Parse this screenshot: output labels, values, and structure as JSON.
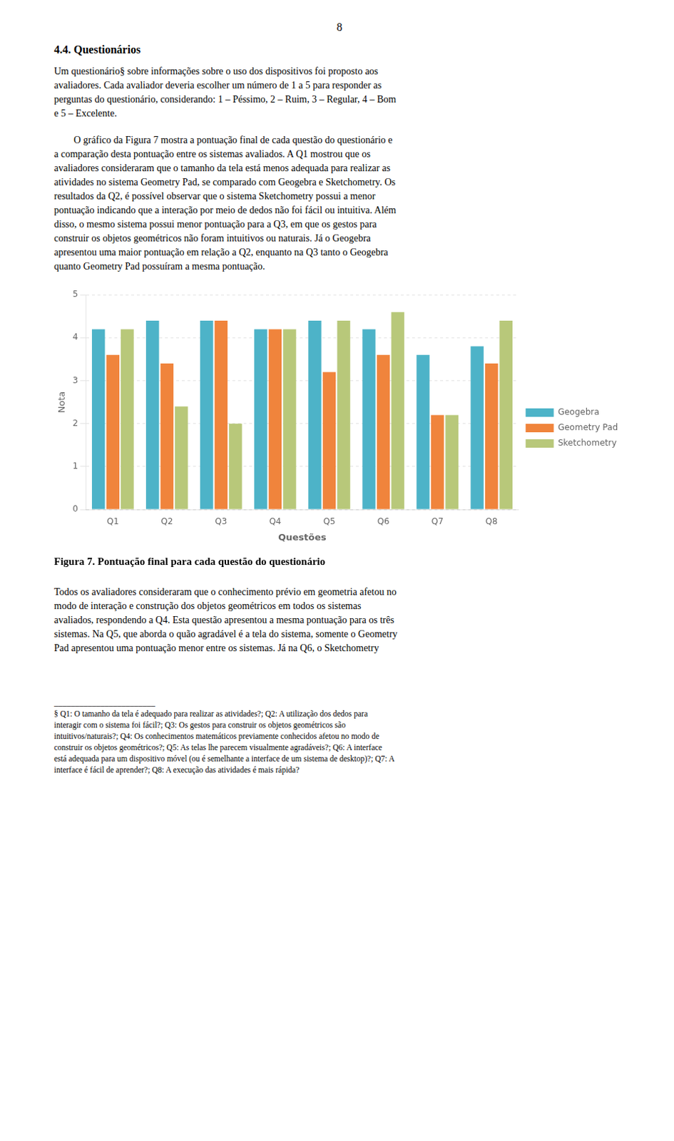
{
  "chart_data": {
    "type": "bar",
    "title": "Figura 7. Pontuação final para cada questão do questionário",
    "xlabel": "Questões",
    "ylabel": "Nota",
    "categories": [
      "Q1",
      "Q2",
      "Q3",
      "Q4",
      "Q5",
      "Q6",
      "Q7",
      "Q8"
    ],
    "series": [
      {
        "name": "Geogebra",
        "color": "#4db3c8",
        "values": [
          4.2,
          4.4,
          4.4,
          4.2,
          4.4,
          4.2,
          3.6,
          3.8
        ]
      },
      {
        "name": "Geometry Pad",
        "color": "#f0843c",
        "values": [
          3.6,
          3.4,
          4.4,
          4.2,
          3.2,
          3.6,
          2.2,
          3.4
        ]
      },
      {
        "name": "Sketchometry",
        "color": "#b8c87a",
        "values": [
          4.2,
          2.4,
          2.0,
          4.2,
          4.4,
          4.6,
          2.2,
          4.4
        ]
      }
    ],
    "ylim": [
      0,
      5
    ],
    "yticks": [
      0,
      1,
      2,
      3,
      4,
      5
    ],
    "grid": true,
    "legend": "right",
    "annotations": [
      "8",
      "4.4. Questionários",
      "Um questionário§ sobre informações sobre o uso dos dispositivos foi proposto aos\navaliadores. Cada avaliador deveria escolher um número de 1 a 5 para responder as\nperguntas do questionário, considerando: 1 – Péssimo, 2 – Ruim, 3 – Regular, 4 – Bom\ne 5 – Excelente.",
      "        O gráfico da Figura 7 mostra a pontuação final de cada questão do questionário e\na comparação desta pontuação entre os sistemas avaliados. A Q1 mostrou que os\navaliadores consideraram que o tamanho da tela está menos adequada para realizar as\natividades no sistema Geometry Pad, se comparado com Geogebra e Sketchometry. Os\nresultados da Q2, é possível observar que o sistema Sketchometry possui a menor\npontuação indicando que a interação por meio de dedos não foi fácil ou intuitiva. Além\ndisso, o mesmo sistema possui menor pontuação para a Q3, em que os gestos para\nconstruir os objetos geométricos não foram intuitivos ou naturais. Já o Geogebra\napresentou uma maior pontuação em relação a Q2, enquanto na Q3 tanto o Geogebra\nquanto Geometry Pad possuíram a mesma pontuação.",
      "Todos os avaliadores consideraram que o conhecimento prévio em geometria afetou no\nmodo de interação e construção dos objetos geométricos em todos os sistemas\navaliados, respondendo a Q4. Esta questão apresentou a mesma pontuação para os três\nsistemas. Na Q5, que aborda o quão agradável é a tela do sistema, somente o Geometry\nPad apresentou uma pontuação menor entre os sistemas. Já na Q6, o Sketchometry",
      "________________________",
      "§ Q1: O tamanho da tela é adequado para realizar as atividades?; Q2: A utilização dos dedos para\ninteragir com o sistema foi fácil?; Q3: Os gestos para construir os objetos geométricos são\nintuitivos/naturais?; Q4: Os conhecimentos matemáticos previamente conhecidos afetou no modo de\nconstruir os objetos geométricos?; Q5: As telas lhe parecem visualmente agradáveis?; Q6: A interface\nestá adequada para um dispositivo móvel (ou é semelhante a interface de um sistema de desktop)?; Q7: A\ninterface é fácil de aprender?; Q8: A execução das atividades é mais rápida?"
    ]
  }
}
